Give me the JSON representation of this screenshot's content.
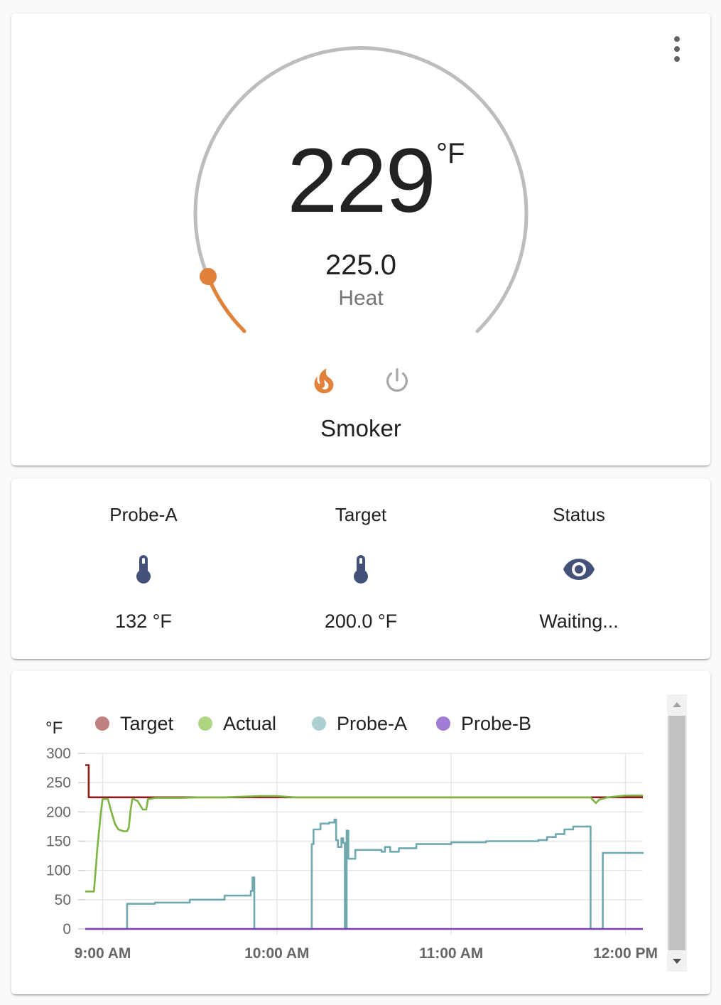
{
  "thermostat": {
    "current_temperature": "229",
    "unit": "°F",
    "target_temperature": "225.0",
    "hvac_action": "Heat",
    "name": "Smoker",
    "menu_icon": "dots-vertical-icon",
    "modes": [
      {
        "name": "heat",
        "icon": "fire-icon",
        "color": "#e0823a",
        "active": true
      },
      {
        "name": "off",
        "icon": "power-icon",
        "color": "#a8a8a8",
        "active": false
      }
    ],
    "colors": {
      "accent": "#e0823a",
      "track": "#bdbdbd"
    }
  },
  "sensors": [
    {
      "name": "Probe-A",
      "icon": "thermometer-icon",
      "state": "132 °F"
    },
    {
      "name": "Target",
      "icon": "thermometer-icon",
      "state": "200.0 °F"
    },
    {
      "name": "Status",
      "icon": "eye-icon",
      "state": "Waiting..."
    }
  ],
  "chart_data": {
    "type": "line",
    "ylabel": "°F",
    "ylim": [
      0,
      300
    ],
    "yticks": [
      0,
      50,
      100,
      150,
      200,
      250,
      300
    ],
    "xticks": [
      "9:00 AM",
      "10:00 AM",
      "11:00 AM",
      "12:00 PM"
    ],
    "xlim_hours": [
      8.9,
      12.1
    ],
    "grid": true,
    "legend_position": "top",
    "series": [
      {
        "name": "Target",
        "color": "#8b1a1a",
        "legend_color": "#c08080",
        "step": true,
        "x": [
          8.9,
          8.91,
          8.92,
          12.1
        ],
        "y": [
          280,
          280,
          225,
          225
        ]
      },
      {
        "name": "Actual",
        "color": "#7cb342",
        "legend_color": "#aed581",
        "step": false,
        "x": [
          8.9,
          8.95,
          8.97,
          8.99,
          9.0,
          9.03,
          9.05,
          9.07,
          9.09,
          9.12,
          9.14,
          9.15,
          9.16,
          9.17,
          9.18,
          9.19,
          9.2,
          9.23,
          9.25,
          9.26,
          9.27,
          9.3,
          9.35,
          9.45,
          9.55,
          9.7,
          9.8,
          9.9,
          10.0,
          10.1,
          11.0,
          11.5,
          11.8,
          11.83,
          11.84,
          11.85,
          11.9,
          12.0,
          12.1
        ],
        "y": [
          64,
          64,
          140,
          200,
          222,
          222,
          200,
          180,
          170,
          167,
          167,
          173,
          203,
          222,
          222,
          220,
          219,
          204,
          204,
          222,
          222,
          224,
          224,
          224,
          225,
          225,
          226,
          227,
          227,
          225,
          225,
          225,
          225,
          215,
          218,
          221,
          225,
          228,
          228
        ]
      },
      {
        "name": "Probe-A",
        "color": "#6fa9ae",
        "legend_color": "#aecfd2",
        "step": true,
        "x": [
          8.9,
          9.14,
          9.14,
          9.3,
          9.5,
          9.7,
          9.85,
          9.86,
          9.86,
          9.87,
          9.87,
          10.2,
          10.2,
          10.21,
          10.25,
          10.3,
          10.33,
          10.34,
          10.35,
          10.37,
          10.38,
          10.39,
          10.4,
          10.4,
          10.41,
          10.45,
          10.6,
          10.62,
          10.65,
          10.7,
          10.8,
          11.0,
          11.2,
          11.5,
          11.55,
          11.6,
          11.65,
          11.7,
          11.8,
          11.8,
          11.87,
          11.87,
          11.9,
          12.1
        ],
        "y": [
          0,
          0,
          43,
          45,
          50,
          57,
          65,
          75,
          88,
          88,
          0,
          0,
          145,
          170,
          180,
          182,
          187,
          152,
          140,
          155,
          147,
          0,
          0,
          168,
          120,
          135,
          132,
          140,
          132,
          138,
          145,
          148,
          150,
          152,
          157,
          162,
          170,
          175,
          175,
          0,
          0,
          130,
          130,
          131
        ]
      },
      {
        "name": "Probe-B",
        "color": "#7e3fb5",
        "legend_color": "#a07cd6",
        "step": false,
        "x": [
          8.9,
          12.1
        ],
        "y": [
          0,
          0
        ]
      }
    ]
  }
}
